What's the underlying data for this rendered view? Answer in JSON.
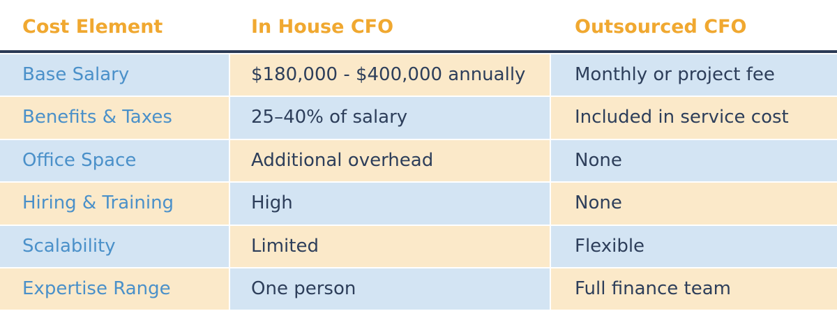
{
  "table": {
    "header": [
      "Cost Element",
      "In House CFO",
      "Outsourced CFO"
    ],
    "rows": [
      [
        "Base Salary",
        "$180,000 - $400,000 annually",
        "Monthly or project fee"
      ],
      [
        "Benefits & Taxes",
        "25–40% of salary",
        "Included in service cost"
      ],
      [
        "Office Space",
        "Additional overhead",
        "None"
      ],
      [
        "Hiring & Training",
        "High",
        "None"
      ],
      [
        "Scalability",
        "Limited",
        "Flexible"
      ],
      [
        "Expertise Range",
        "One person",
        "Full finance team"
      ]
    ]
  }
}
